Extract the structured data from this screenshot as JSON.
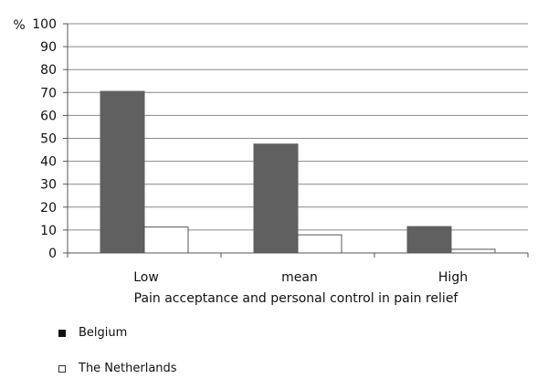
{
  "chart_data": {
    "type": "bar",
    "categories": [
      "Low",
      "mean",
      "High"
    ],
    "series": [
      {
        "name": "Belgium",
        "values": [
          70.5,
          47.5,
          11.5
        ],
        "color": "#606060"
      },
      {
        "name": "The Netherlands",
        "values": [
          11.3,
          7.9,
          1.6
        ],
        "color": "#ffffff"
      }
    ],
    "y_unit_label": "%",
    "xlabel": "Pain acceptance and personal control in pain relief",
    "ylabel": "",
    "ylim": [
      0,
      100
    ],
    "yticks": [
      0,
      10,
      20,
      30,
      40,
      50,
      60,
      70,
      80,
      90,
      100
    ],
    "grid": true,
    "legend_placement": "bottom-left"
  },
  "colors": {
    "bar_border": "#555555",
    "grid": "#888888"
  }
}
